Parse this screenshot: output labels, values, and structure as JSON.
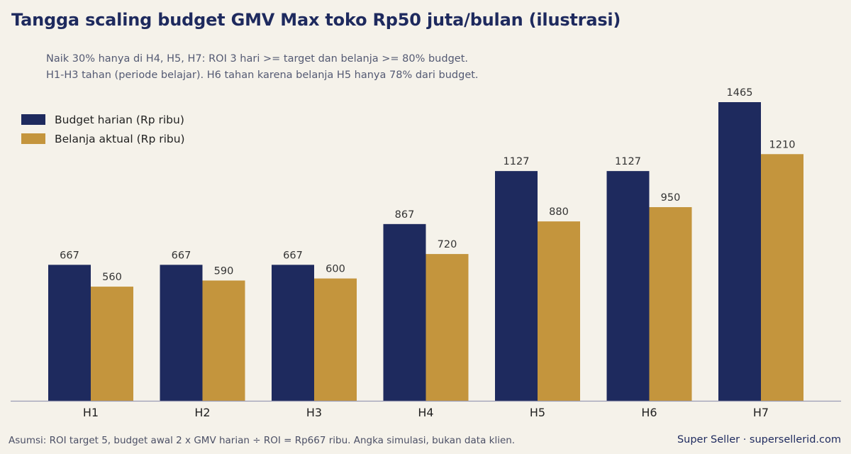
{
  "header": {
    "title": "Tangga scaling budget GMV Max toko Rp50 juta/bulan (ilustrasi)",
    "subtitle_line1": "Naik 30% hanya di H4, H5, H7: ROI 3 hari >= target dan belanja >= 80% budget.",
    "subtitle_line2": "H1-H3 tahan (periode belajar). H6 tahan karena belanja H5 hanya 78% dari budget."
  },
  "footer": {
    "note": "Asumsi: ROI target 5, budget awal 2 x GMV harian ÷ ROI = Rp667 ribu. Angka simulasi, bukan data klien.",
    "brand": "Super Seller · supersellerid.com"
  },
  "colors": {
    "budget": "#1e2a5e",
    "spend": "#c4953d",
    "axis": "#9a9cb5"
  },
  "chart_data": {
    "type": "bar",
    "categories": [
      "H1",
      "H2",
      "H3",
      "H4",
      "H5",
      "H6",
      "H7"
    ],
    "series": [
      {
        "name": "Budget harian (Rp ribu)",
        "values": [
          667,
          667,
          667,
          867,
          1127,
          1127,
          1465
        ]
      },
      {
        "name": "Belanja aktual (Rp ribu)",
        "values": [
          560,
          590,
          600,
          720,
          880,
          950,
          1210
        ]
      }
    ],
    "ylim": [
      0,
      1550
    ],
    "grid": false,
    "legend_position": "top-left"
  }
}
